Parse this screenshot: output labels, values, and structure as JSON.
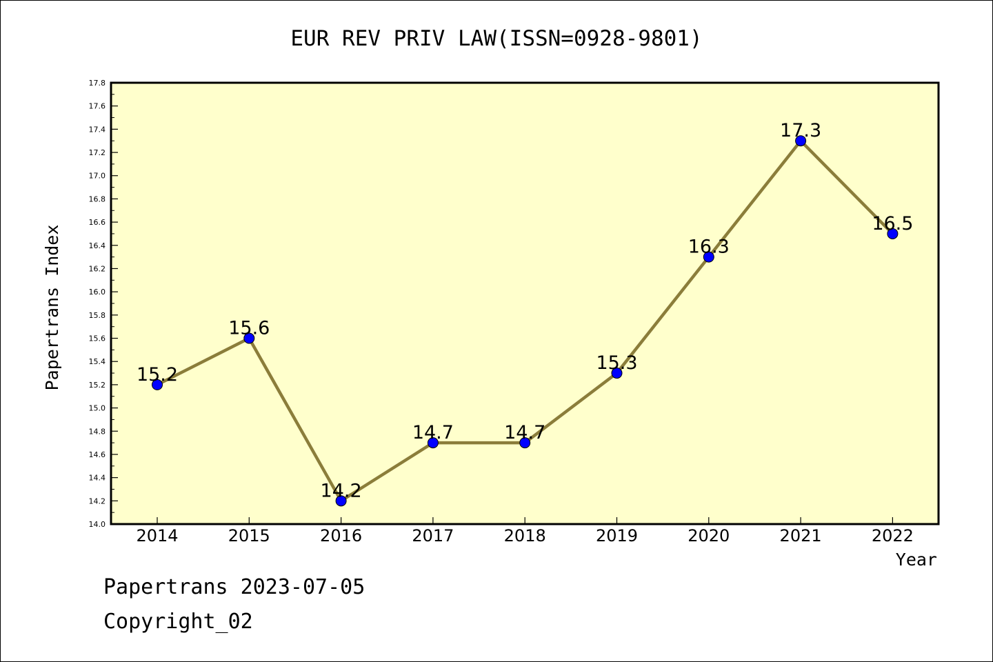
{
  "chart_data": {
    "type": "line",
    "title": "EUR REV PRIV LAW(ISSN=0928-9801)",
    "xlabel": "Year",
    "ylabel": "Papertrans Index",
    "categories": [
      "2014",
      "2015",
      "2016",
      "2017",
      "2018",
      "2019",
      "2020",
      "2021",
      "2022"
    ],
    "series": [
      {
        "values": [
          15.2,
          15.6,
          14.2,
          14.7,
          14.7,
          15.3,
          16.3,
          17.3,
          16.5
        ]
      }
    ],
    "data_labels": [
      "15.2",
      "15.6",
      "14.2",
      "14.7",
      "14.7",
      "15.3",
      "16.3",
      "17.3",
      "16.5"
    ],
    "ylim": [
      14.0,
      17.8
    ],
    "yticks": [
      "14.0",
      "14.2",
      "14.4",
      "14.6",
      "14.8",
      "15.0",
      "15.2",
      "15.4",
      "15.6",
      "15.8",
      "16.0",
      "16.2",
      "16.4",
      "16.6",
      "16.8",
      "17.0",
      "17.2",
      "17.4",
      "17.6",
      "17.8"
    ],
    "grid": false,
    "colors": {
      "plot_background": "#ffffcc",
      "line": "#8b7d3a",
      "marker": "#0000ff"
    }
  },
  "footer": {
    "line1": "Papertrans 2023-07-05",
    "line2": "Copyright_02"
  }
}
